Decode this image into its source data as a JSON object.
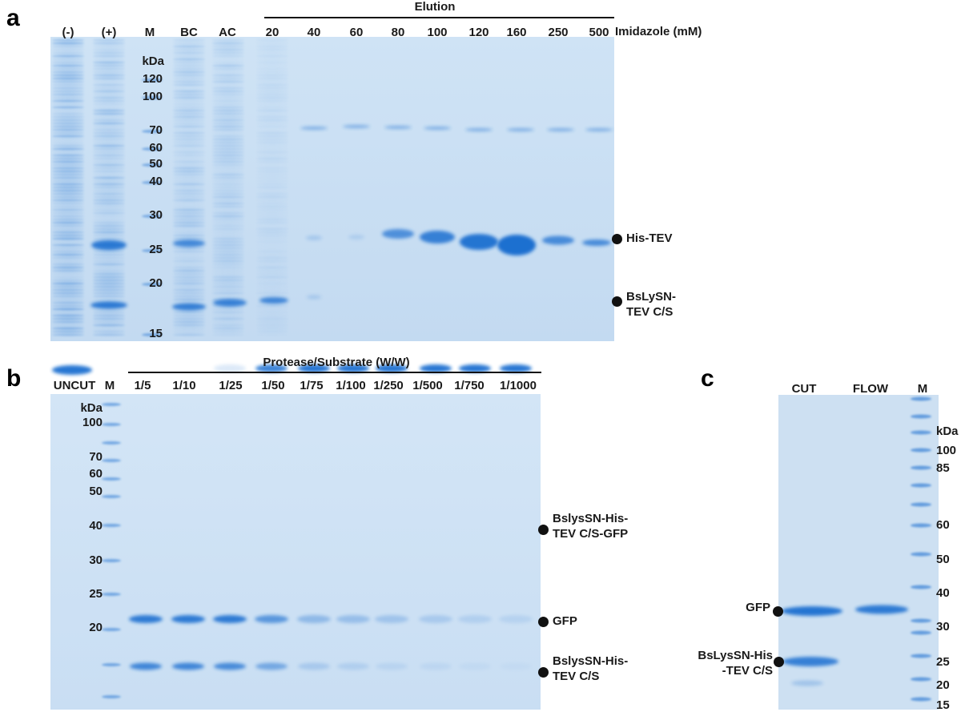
{
  "panel_a": {
    "letter": "a",
    "elution_header": "Elution",
    "lanes": [
      "(-)",
      "(+)",
      "M",
      "BC",
      "AC",
      "20",
      "40",
      "60",
      "80",
      "100",
      "120",
      "160",
      "250",
      "500"
    ],
    "axis_label": "Imidazole (mM)",
    "unit": "kDa",
    "markers": [
      "120",
      "100",
      "70",
      "60",
      "50",
      "40",
      "30",
      "25",
      "20",
      "15"
    ],
    "bands": [
      "His-TEV",
      "BsLySN-",
      "TEV C/S"
    ]
  },
  "panel_b": {
    "letter": "b",
    "header": "Protease/Substrate (W/W)",
    "lanes": [
      "UNCUT",
      "M",
      "1/5",
      "1/10",
      "1/25",
      "1/50",
      "1/75",
      "1/100",
      "1/250",
      "1/500",
      "1/750",
      "1/1000"
    ],
    "unit": "kDa",
    "markers": [
      "100",
      "70",
      "60",
      "50",
      "40",
      "30",
      "25",
      "20"
    ],
    "bands": [
      "BslysSN-His-",
      "TEV C/S-GFP",
      "GFP",
      "BslysSN-His-",
      "TEV C/S"
    ]
  },
  "panel_c": {
    "letter": "c",
    "lanes": [
      "CUT",
      "FLOW",
      "M"
    ],
    "unit": "kDa",
    "markers": [
      "100",
      "85",
      "60",
      "50",
      "40",
      "30",
      "25",
      "20",
      "15"
    ],
    "bands": [
      "GFP",
      "BsLysSN-His",
      "-TEV C/S"
    ]
  },
  "colors": {
    "gel_background": "#c8def2",
    "band_blue": "#1f6fd0",
    "text": "#1a1a1a"
  }
}
